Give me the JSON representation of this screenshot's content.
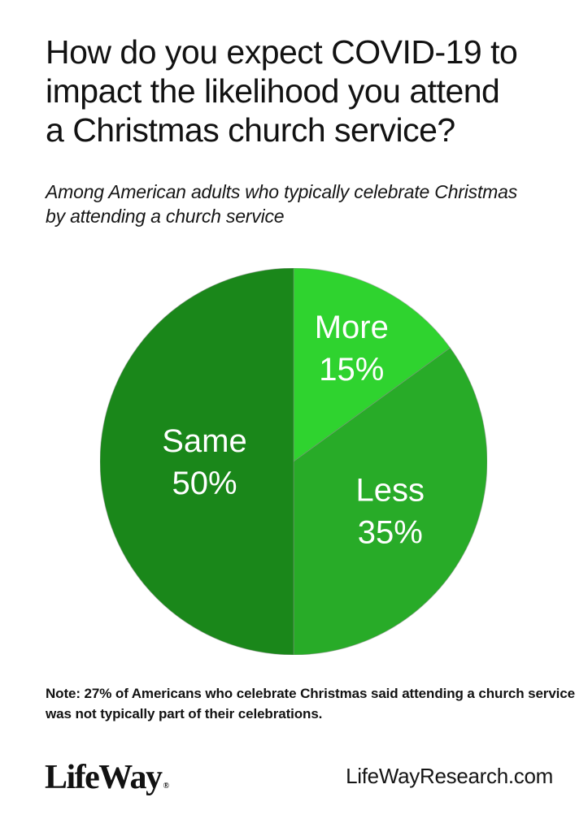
{
  "header": {
    "title_lines": [
      "How do you expect COVID-19 to",
      "impact the likelihood you attend",
      "a Christmas church service?"
    ],
    "subtitle_lines": [
      "Among American adults who typically celebrate Christmas",
      "by attending a church service"
    ]
  },
  "chart_data": {
    "type": "pie",
    "title": "How do you expect COVID-19 to impact the likelihood you attend a Christmas church service?",
    "categories": [
      "More",
      "Less",
      "Same"
    ],
    "values": [
      15,
      35,
      50
    ],
    "unit": "%",
    "colors": [
      "#2FD32F",
      "#28AB28",
      "#1A871A"
    ],
    "label_color": "#FFFFFF",
    "slice_stroke": "#8A8A8A",
    "start_angle": "12 o'clock",
    "direction": "clockwise",
    "label_radius_fraction": [
      0.66,
      0.56,
      0.46
    ],
    "legend_position": "none"
  },
  "note": {
    "lines": [
      "Note: 27% of Americans who celebrate Christmas said attending a church service",
      "was not typically part of their celebrations."
    ]
  },
  "footer": {
    "logo_text": "LifeWay",
    "logo_mark": "®",
    "website": "LifeWayResearch.com"
  }
}
